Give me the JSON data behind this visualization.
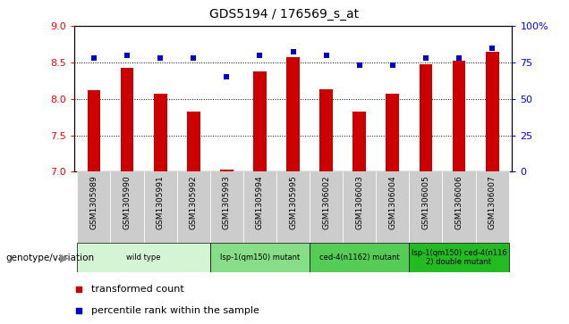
{
  "title": "GDS5194 / 176569_s_at",
  "samples": [
    "GSM1305989",
    "GSM1305990",
    "GSM1305991",
    "GSM1305992",
    "GSM1305993",
    "GSM1305994",
    "GSM1305995",
    "GSM1306002",
    "GSM1306003",
    "GSM1306004",
    "GSM1306005",
    "GSM1306006",
    "GSM1306007"
  ],
  "bar_values": [
    8.12,
    8.43,
    8.07,
    7.82,
    7.03,
    8.38,
    8.57,
    8.13,
    7.82,
    8.07,
    8.47,
    8.52,
    8.65
  ],
  "dot_values": [
    78,
    80,
    78,
    78,
    65,
    80,
    82,
    80,
    73,
    73,
    78,
    78,
    85
  ],
  "ylim_left": [
    7,
    9
  ],
  "ylim_right": [
    0,
    100
  ],
  "yticks_left": [
    7,
    7.5,
    8,
    8.5,
    9
  ],
  "yticks_right": [
    0,
    25,
    50,
    75,
    100
  ],
  "bar_color": "#cc0000",
  "dot_color": "#0000cc",
  "bar_bottom": 7,
  "group_data": [
    {
      "label": "wild type",
      "start": 0,
      "end": 3,
      "color": "#d4f5d4"
    },
    {
      "label": "lsp-1(qm150) mutant",
      "start": 4,
      "end": 6,
      "color": "#88dd88"
    },
    {
      "label": "ced-4(n1162) mutant",
      "start": 7,
      "end": 9,
      "color": "#55cc55"
    },
    {
      "label": "lsp-1(qm150) ced-4(n116\n2) double mutant",
      "start": 10,
      "end": 12,
      "color": "#22bb22"
    }
  ],
  "legend_items": [
    {
      "color": "#cc0000",
      "label": "transformed count"
    },
    {
      "color": "#0000cc",
      "label": "percentile rank within the sample"
    }
  ],
  "tick_bg_color": "#cccccc",
  "plot_bg": "#ffffff",
  "bar_width": 0.4
}
